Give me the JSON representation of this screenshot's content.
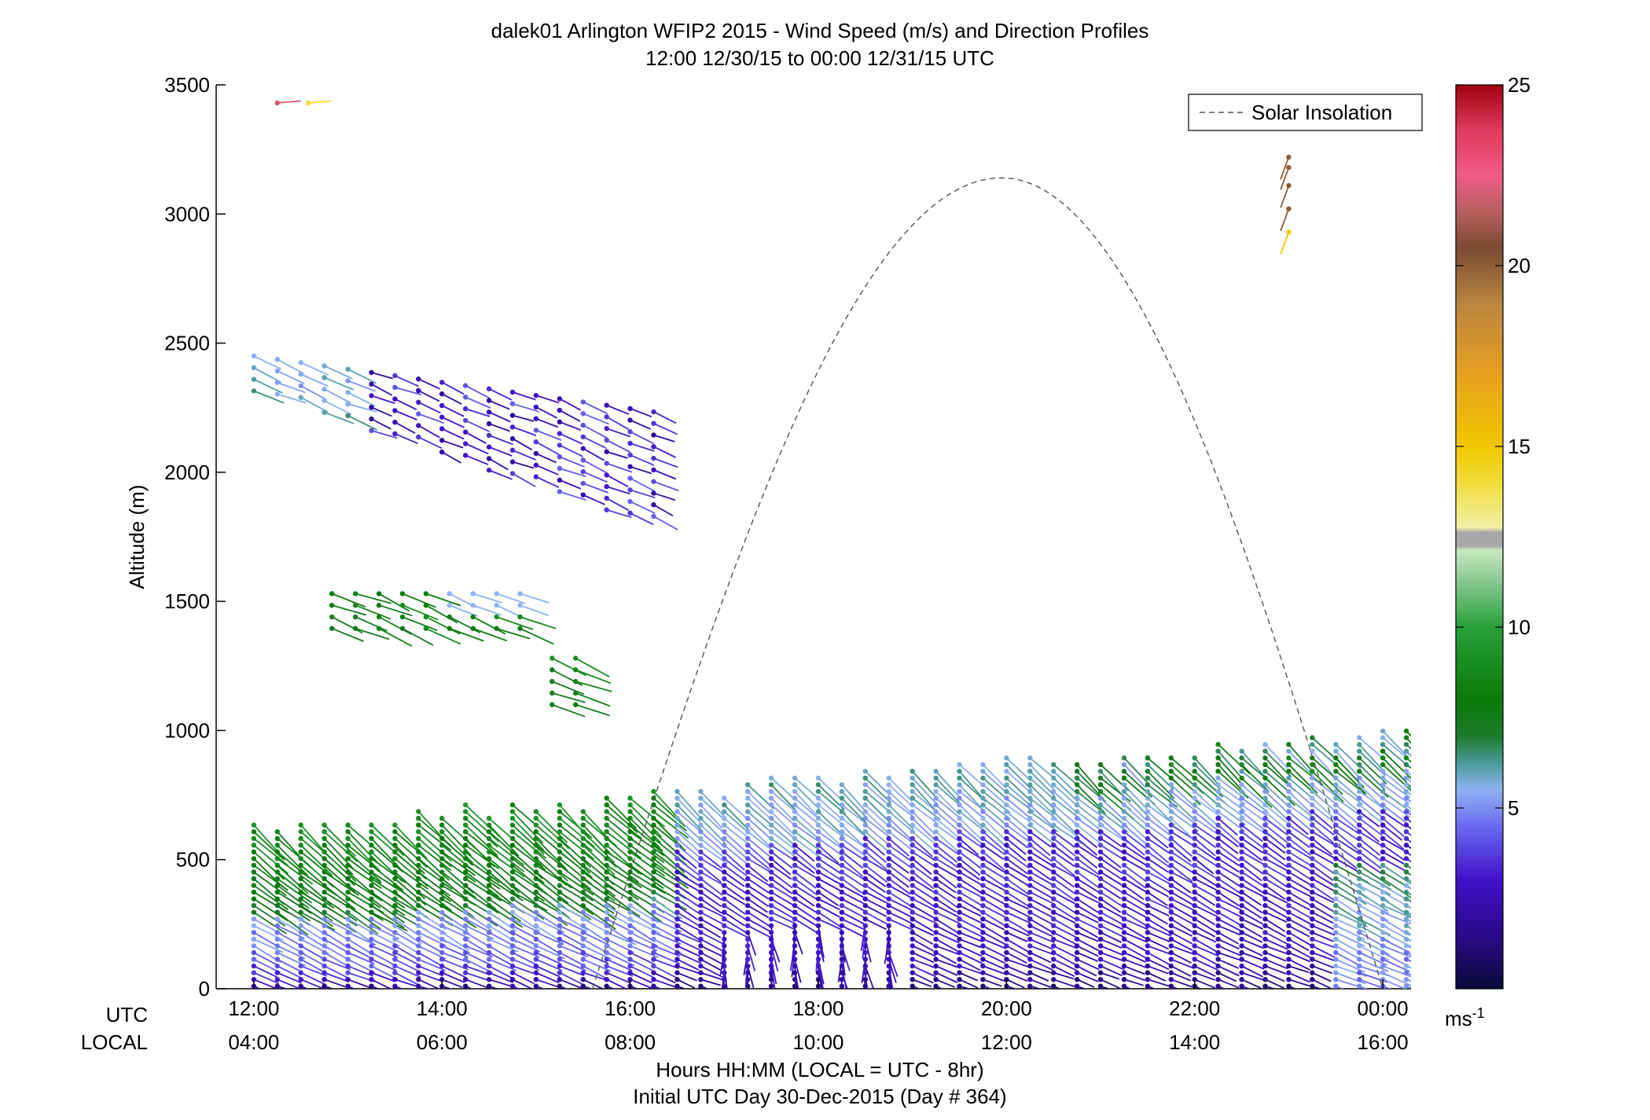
{
  "chart_data": {
    "type": "scatter",
    "title": "dalek01 Arlington WFIP2 2015 - Wind Speed (m/s) and Direction Profiles",
    "subtitle": "12:00 12/30/15 to 00:00 12/31/15  UTC",
    "ylabel": "Altitude (m)",
    "xlabel": "Hours HH:MM  (LOCAL = UTC - 8hr)",
    "xlabel2": "Initial UTC Day 30-Dec-2015 (Day # 364)",
    "row_label_utc": "UTC",
    "row_label_local": "LOCAL",
    "ylim": [
      0,
      3500
    ],
    "xlim_hours": [
      11.6,
      24.3
    ],
    "y_ticks": [
      0,
      500,
      1000,
      1500,
      2000,
      2500,
      3000,
      3500
    ],
    "y_tick_labels": [
      "0",
      "500",
      "1000",
      "1500",
      "2000",
      "2500",
      "3000",
      "3500"
    ],
    "x_ticks_hours": [
      12,
      14,
      16,
      18,
      20,
      22,
      24
    ],
    "x_tick_labels_utc": [
      "12:00",
      "14:00",
      "16:00",
      "18:00",
      "20:00",
      "22:00",
      "00:00"
    ],
    "x_tick_labels_local": [
      "04:00",
      "06:00",
      "08:00",
      "10:00",
      "12:00",
      "14:00",
      "16:00"
    ],
    "legend": {
      "label": "Solar Insolation",
      "position": "top-right"
    },
    "colorbar": {
      "range": [
        0,
        25
      ],
      "ticks": [
        5,
        10,
        15,
        20,
        25
      ],
      "tick_labels": [
        "5",
        "10",
        "15",
        "20",
        "25"
      ],
      "unit_label": "ms",
      "unit_exponent": "-1"
    },
    "solar_insolation": {
      "style": "dashed",
      "color": "#555555",
      "start_hour": 15.6,
      "peak_hour": 19.95,
      "end_hour": 24.0,
      "peak_altitude": 3140
    },
    "wind_profiles": {
      "low_layer": {
        "start_hour": 12.0,
        "end_hour": 24.25,
        "step_hours": 0.25,
        "top_start": 620,
        "top_end": 1000
      },
      "upper_segments": [
        {
          "start_hour": 12.0,
          "end_hour": 16.33,
          "top": 2450,
          "bottom_start": 2310,
          "bottom_end": 1780
        },
        {
          "start_hour": 12.83,
          "end_hour": 15.0,
          "top": 1530,
          "bottom": 1380
        },
        {
          "start_hour": 15.17,
          "end_hour": 15.5,
          "top": 1280,
          "bottom": 1090
        }
      ],
      "isolated_points": [
        {
          "hour": 12.25,
          "altitude": 3430,
          "speed": 22
        },
        {
          "hour": 12.58,
          "altitude": 3430,
          "speed": 14
        },
        {
          "hour": 23.0,
          "altitude": 3220,
          "speed": 20
        },
        {
          "hour": 23.0,
          "altitude": 3180,
          "speed": 20
        },
        {
          "hour": 23.0,
          "altitude": 3110,
          "speed": 20
        },
        {
          "hour": 23.0,
          "altitude": 3020,
          "speed": 20
        },
        {
          "hour": 23.0,
          "altitude": 2930,
          "speed": 15
        }
      ]
    }
  }
}
